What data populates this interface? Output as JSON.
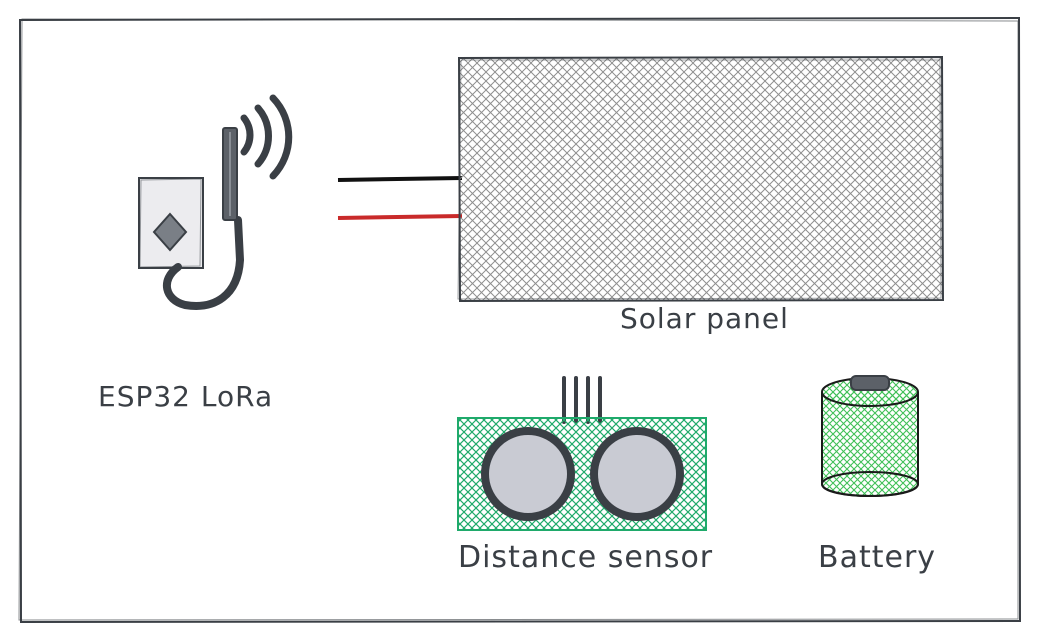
{
  "labels": {
    "esp32": "ESP32 LoRa",
    "solar_panel": "Solar panel",
    "distance_sensor": "Distance sensor",
    "battery": "Battery"
  },
  "colors": {
    "stroke": "#3a3f45",
    "hatch_gray": "#9a9a9a",
    "board_fill": "#d8d8dc",
    "sensor_green": "#1faa6b",
    "battery_green": "#40c057",
    "wire_black": "#111111",
    "wire_red": "#c92a2a"
  }
}
